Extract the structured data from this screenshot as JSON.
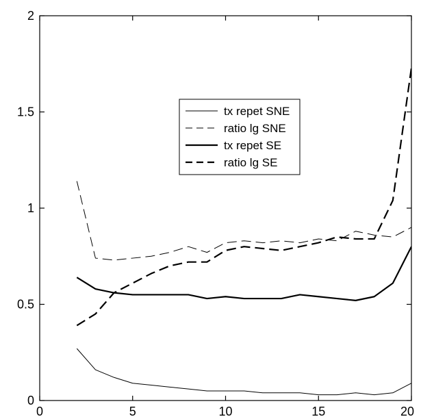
{
  "chart_data": {
    "type": "line",
    "title": "",
    "xlabel": "",
    "ylabel": "",
    "xlim": [
      0,
      20
    ],
    "ylim": [
      0,
      2
    ],
    "xticks": [
      0,
      5,
      10,
      15,
      20
    ],
    "yticks": [
      0,
      0.5,
      1,
      1.5,
      2
    ],
    "xtick_labels": [
      "0",
      "5",
      "10",
      "15",
      "20"
    ],
    "ytick_labels": [
      "0",
      "0.5",
      "1",
      "1.5",
      "2"
    ],
    "grid": false,
    "legend_position": "upper-center",
    "x": [
      2,
      3,
      4,
      5,
      6,
      7,
      8,
      9,
      10,
      11,
      12,
      13,
      14,
      15,
      16,
      17,
      18,
      19,
      20
    ],
    "series": [
      {
        "name": "tx repet SNE",
        "style": "thin-solid",
        "color": "#000000",
        "values": [
          0.27,
          0.16,
          0.12,
          0.09,
          0.08,
          0.07,
          0.06,
          0.05,
          0.05,
          0.05,
          0.04,
          0.04,
          0.04,
          0.03,
          0.03,
          0.04,
          0.03,
          0.04,
          0.09
        ]
      },
      {
        "name": "ratio lg SNE",
        "style": "thin-dashed",
        "color": "#000000",
        "values": [
          1.14,
          0.74,
          0.73,
          0.74,
          0.75,
          0.77,
          0.8,
          0.77,
          0.82,
          0.83,
          0.82,
          0.83,
          0.82,
          0.84,
          0.83,
          0.88,
          0.86,
          0.85,
          0.9
        ]
      },
      {
        "name": "tx repet SE",
        "style": "thick-solid",
        "color": "#000000",
        "values": [
          0.64,
          0.58,
          0.56,
          0.55,
          0.55,
          0.55,
          0.55,
          0.53,
          0.54,
          0.53,
          0.53,
          0.53,
          0.55,
          0.54,
          0.53,
          0.52,
          0.54,
          0.61,
          0.8
        ]
      },
      {
        "name": "ratio lg SE",
        "style": "thick-dashed",
        "color": "#000000",
        "values": [
          0.39,
          0.45,
          0.56,
          0.61,
          0.66,
          0.7,
          0.72,
          0.72,
          0.78,
          0.8,
          0.79,
          0.78,
          0.8,
          0.82,
          0.85,
          0.84,
          0.84,
          1.04,
          1.73
        ]
      }
    ]
  }
}
